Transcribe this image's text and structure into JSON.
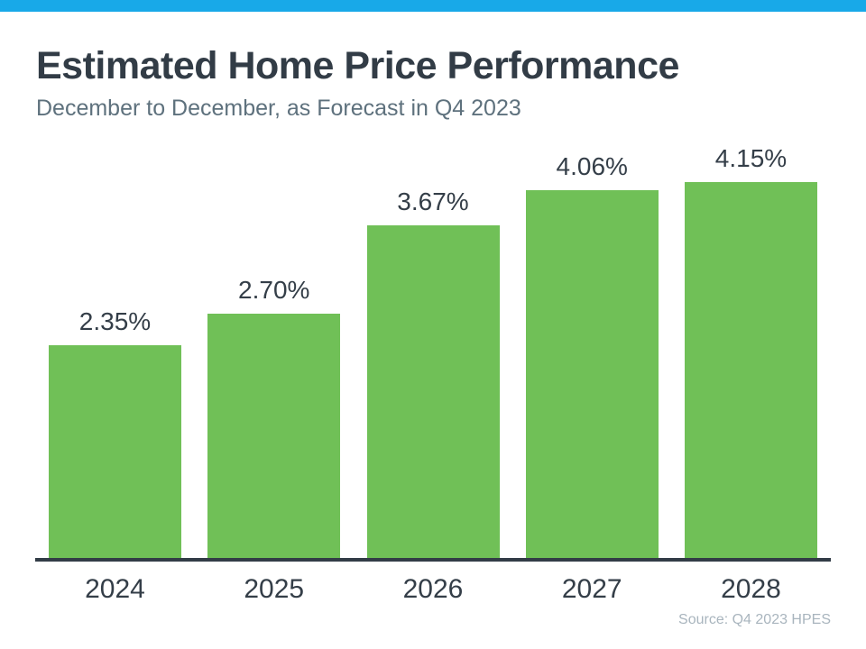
{
  "page": {
    "accent_color": "#18A9E8"
  },
  "header": {
    "title": "Estimated Home Price Performance",
    "subtitle": "December to December, as Forecast in Q4 2023"
  },
  "chart_data": {
    "type": "bar",
    "title": "Estimated Home Price Performance",
    "subtitle": "December to December, as Forecast in Q4 2023",
    "categories": [
      "2024",
      "2025",
      "2026",
      "2027",
      "2028"
    ],
    "values": [
      2.35,
      2.7,
      3.67,
      4.06,
      4.15
    ],
    "value_labels": [
      "2.35%",
      "2.70%",
      "3.67%",
      "4.06%",
      "4.15%"
    ],
    "xlabel": "",
    "ylabel": "",
    "ylim": [
      0,
      4.6
    ],
    "grid": false,
    "legend": false,
    "bar_color": "#70C057",
    "axis_color": "#323C46",
    "label_color": "#343E48"
  },
  "footer": {
    "source": "Source: Q4 2023 HPES"
  }
}
